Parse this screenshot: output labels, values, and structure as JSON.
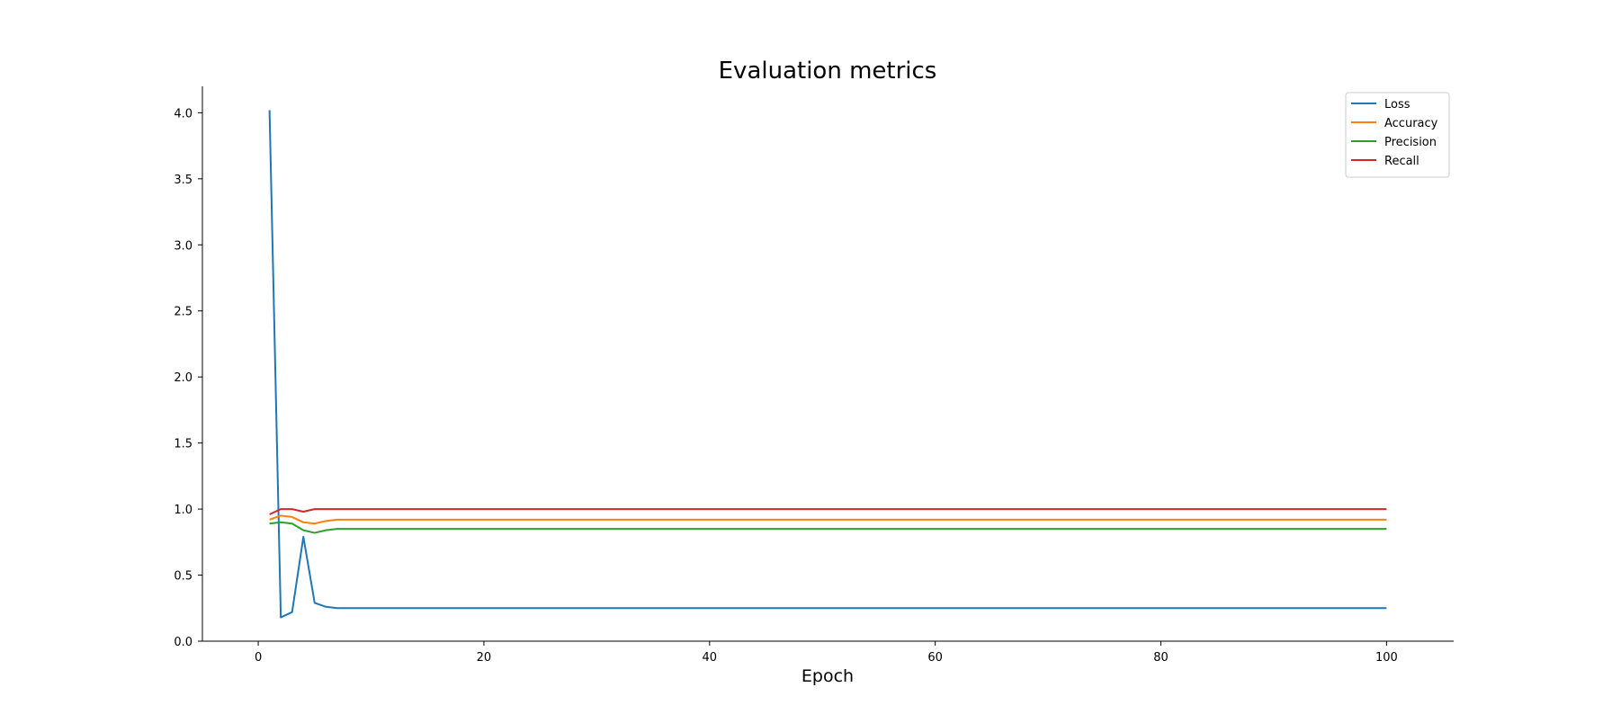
{
  "chart_data": {
    "type": "line",
    "title": "Evaluation metrics",
    "xlabel": "Epoch",
    "ylabel": "",
    "xlim": [
      -4.95,
      105.95
    ],
    "ylim": [
      0.0,
      4.2
    ],
    "xticks": [
      0,
      20,
      40,
      60,
      80,
      100
    ],
    "xtick_labels": [
      "0",
      "20",
      "40",
      "60",
      "80",
      "100"
    ],
    "yticks": [
      0.0,
      0.5,
      1.0,
      1.5,
      2.0,
      2.5,
      3.0,
      3.5,
      4.0
    ],
    "ytick_labels": [
      "0.0",
      "0.5",
      "1.0",
      "1.5",
      "2.0",
      "2.5",
      "3.0",
      "3.5",
      "4.0"
    ],
    "grid": false,
    "legend_position": "top-right",
    "x": {
      "start": 1,
      "end": 100
    },
    "series": [
      {
        "name": "Loss",
        "color": "#1f77b4",
        "values": [
          4.02,
          0.18,
          0.22,
          0.79,
          0.29,
          0.26,
          0.25,
          0.25
        ],
        "steady_value": 0.25
      },
      {
        "name": "Accuracy",
        "color": "#ff7f0e",
        "values": [
          0.92,
          0.95,
          0.94,
          0.9,
          0.89,
          0.91,
          0.92,
          0.92
        ],
        "steady_value": 0.92
      },
      {
        "name": "Precision",
        "color": "#2ca02c",
        "values": [
          0.89,
          0.9,
          0.89,
          0.84,
          0.82,
          0.84,
          0.85,
          0.85
        ],
        "steady_value": 0.85
      },
      {
        "name": "Recall",
        "color": "#d62728",
        "values": [
          0.96,
          1.0,
          1.0,
          0.98,
          1.0,
          1.0,
          1.0,
          1.0
        ],
        "steady_value": 1.0
      }
    ]
  }
}
